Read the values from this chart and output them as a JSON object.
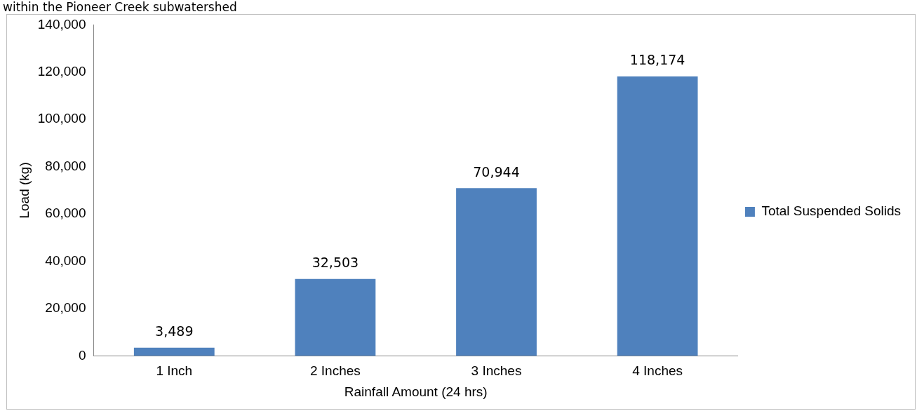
{
  "chart_data": {
    "type": "bar",
    "title": "within the Pioneer Creek subwatershed",
    "categories": [
      "1 Inch",
      "2 Inches",
      "3 Inches",
      "4 Inches"
    ],
    "series": [
      {
        "name": "Total Suspended Solids",
        "color": "#4f81bd",
        "values": [
          3489,
          32503,
          70944,
          118174
        ]
      }
    ],
    "value_labels": [
      "3,489",
      "32,503",
      "70,944",
      "118,174"
    ],
    "xlabel": "Rainfall Amount (24 hrs)",
    "ylabel": "Load (kg)",
    "ylim": [
      0,
      140000
    ],
    "yticks": [
      0,
      {
        "value": 20000,
        "label": "20,000"
      },
      {
        "value": 40000,
        "label": "40,000"
      },
      {
        "value": 60000,
        "label": "60,000"
      },
      {
        "value": 80000,
        "label": "80,000"
      },
      {
        "value": 100000,
        "label": "100,000"
      },
      {
        "value": 120000,
        "label": "120,000"
      },
      {
        "value": 140000,
        "label": "140,000"
      }
    ],
    "grid": false,
    "legend": "right"
  }
}
